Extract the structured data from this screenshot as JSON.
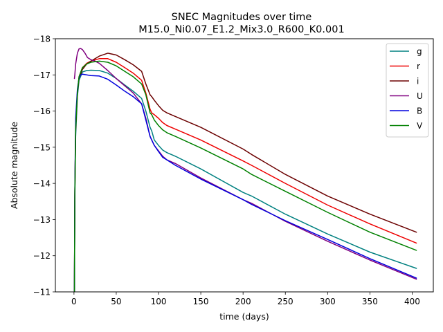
{
  "chart_data": {
    "type": "line",
    "title": "SNEC Magnitudes over time",
    "subtitle": "M15.0_Ni0.07_E1.2_Mix3.0_R600_K0.001",
    "xlabel": "time (days)",
    "ylabel": "Absolute magnitude",
    "xlim": [
      -22,
      425
    ],
    "ylim": [
      -11,
      -18
    ],
    "y_inverted": true,
    "xticks": [
      0,
      50,
      100,
      150,
      200,
      250,
      300,
      350,
      400
    ],
    "xtick_labels": [
      "0",
      "50",
      "100",
      "150",
      "200",
      "250",
      "300",
      "350",
      "400"
    ],
    "yticks": [
      -11,
      -12,
      -13,
      -14,
      -15,
      -16,
      -17,
      -18
    ],
    "ytick_labels": [
      "−11",
      "−12",
      "−13",
      "−14",
      "−15",
      "−16",
      "−17",
      "−18"
    ],
    "grid": false,
    "legend_position": "top-right",
    "series": [
      {
        "name": "g",
        "color": "#008080",
        "x": [
          0.5,
          1,
          2,
          4,
          6,
          10,
          15,
          20,
          30,
          40,
          50,
          60,
          70,
          80,
          85,
          90,
          92,
          95,
          100,
          105,
          110,
          120,
          150,
          200,
          210,
          250,
          300,
          350,
          405
        ],
        "y": [
          -11.0,
          -13.5,
          -15.3,
          -16.4,
          -16.85,
          -17.08,
          -17.12,
          -17.13,
          -17.12,
          -17.05,
          -16.9,
          -16.72,
          -16.55,
          -16.35,
          -16.0,
          -15.55,
          -15.45,
          -15.2,
          -15.05,
          -14.92,
          -14.85,
          -14.75,
          -14.4,
          -13.75,
          -13.65,
          -13.15,
          -12.6,
          -12.1,
          -11.65
        ]
      },
      {
        "name": "r",
        "color": "#ee0000",
        "x": [
          0.5,
          1,
          2,
          4,
          6,
          10,
          15,
          20,
          30,
          40,
          50,
          60,
          70,
          80,
          85,
          90,
          92,
          95,
          100,
          105,
          110,
          120,
          150,
          200,
          210,
          250,
          300,
          350,
          405
        ],
        "y": [
          -11.0,
          -13.7,
          -15.5,
          -16.5,
          -16.95,
          -17.2,
          -17.32,
          -17.38,
          -17.45,
          -17.45,
          -17.35,
          -17.2,
          -17.05,
          -16.85,
          -16.5,
          -16.05,
          -15.95,
          -15.9,
          -15.8,
          -15.68,
          -15.6,
          -15.5,
          -15.2,
          -14.62,
          -14.5,
          -14.0,
          -13.4,
          -12.88,
          -12.35
        ]
      },
      {
        "name": "i",
        "color": "#6b0000",
        "x": [
          0.5,
          1,
          2,
          4,
          6,
          10,
          15,
          20,
          30,
          40,
          50,
          60,
          70,
          80,
          85,
          90,
          92,
          95,
          100,
          105,
          110,
          120,
          150,
          200,
          210,
          250,
          300,
          350,
          405
        ],
        "y": [
          -11.0,
          -13.7,
          -15.5,
          -16.5,
          -16.9,
          -17.15,
          -17.3,
          -17.38,
          -17.52,
          -17.6,
          -17.55,
          -17.42,
          -17.28,
          -17.1,
          -16.75,
          -16.45,
          -16.4,
          -16.3,
          -16.15,
          -16.02,
          -15.95,
          -15.85,
          -15.55,
          -14.95,
          -14.8,
          -14.25,
          -13.65,
          -13.15,
          -12.65
        ]
      },
      {
        "name": "U",
        "color": "#800080",
        "x": [
          0.5,
          1,
          2,
          4,
          6,
          8,
          10,
          13,
          16,
          20,
          25,
          30,
          40,
          50,
          60,
          70,
          80,
          85,
          90,
          92,
          95,
          100,
          105,
          110,
          120,
          150,
          200,
          210,
          250,
          300,
          350,
          405
        ],
        "y": [
          -16.9,
          -17.0,
          -17.3,
          -17.6,
          -17.72,
          -17.73,
          -17.7,
          -17.6,
          -17.48,
          -17.42,
          -17.38,
          -17.32,
          -17.12,
          -16.9,
          -16.7,
          -16.5,
          -16.2,
          -15.8,
          -15.3,
          -15.2,
          -15.05,
          -14.9,
          -14.75,
          -14.65,
          -14.55,
          -14.15,
          -13.55,
          -13.45,
          -12.95,
          -12.4,
          -11.88,
          -11.35
        ]
      },
      {
        "name": "B",
        "color": "#0000dd",
        "x": [
          0.5,
          1,
          2,
          4,
          6,
          8,
          10,
          15,
          20,
          30,
          40,
          50,
          60,
          70,
          80,
          85,
          90,
          92,
          95,
          100,
          105,
          110,
          120,
          150,
          200,
          210,
          250,
          300,
          350,
          405
        ],
        "y": [
          -11.0,
          -13.8,
          -15.8,
          -16.6,
          -16.92,
          -17.0,
          -17.02,
          -17.0,
          -16.98,
          -16.97,
          -16.88,
          -16.72,
          -16.55,
          -16.4,
          -16.2,
          -15.75,
          -15.3,
          -15.2,
          -15.05,
          -14.88,
          -14.72,
          -14.65,
          -14.5,
          -14.12,
          -13.55,
          -13.42,
          -12.97,
          -12.45,
          -11.92,
          -11.38
        ]
      },
      {
        "name": "V",
        "color": "#008000",
        "x": [
          0.5,
          1,
          2,
          4,
          6,
          10,
          15,
          20,
          30,
          40,
          50,
          60,
          70,
          80,
          85,
          90,
          92,
          95,
          100,
          105,
          110,
          120,
          150,
          200,
          210,
          250,
          300,
          350,
          405
        ],
        "y": [
          -11.0,
          -13.7,
          -15.5,
          -16.5,
          -16.95,
          -17.2,
          -17.3,
          -17.35,
          -17.38,
          -17.35,
          -17.25,
          -17.1,
          -16.95,
          -16.75,
          -16.45,
          -15.95,
          -15.9,
          -15.75,
          -15.6,
          -15.48,
          -15.4,
          -15.3,
          -14.98,
          -14.4,
          -14.25,
          -13.78,
          -13.2,
          -12.65,
          -12.15
        ]
      }
    ]
  }
}
